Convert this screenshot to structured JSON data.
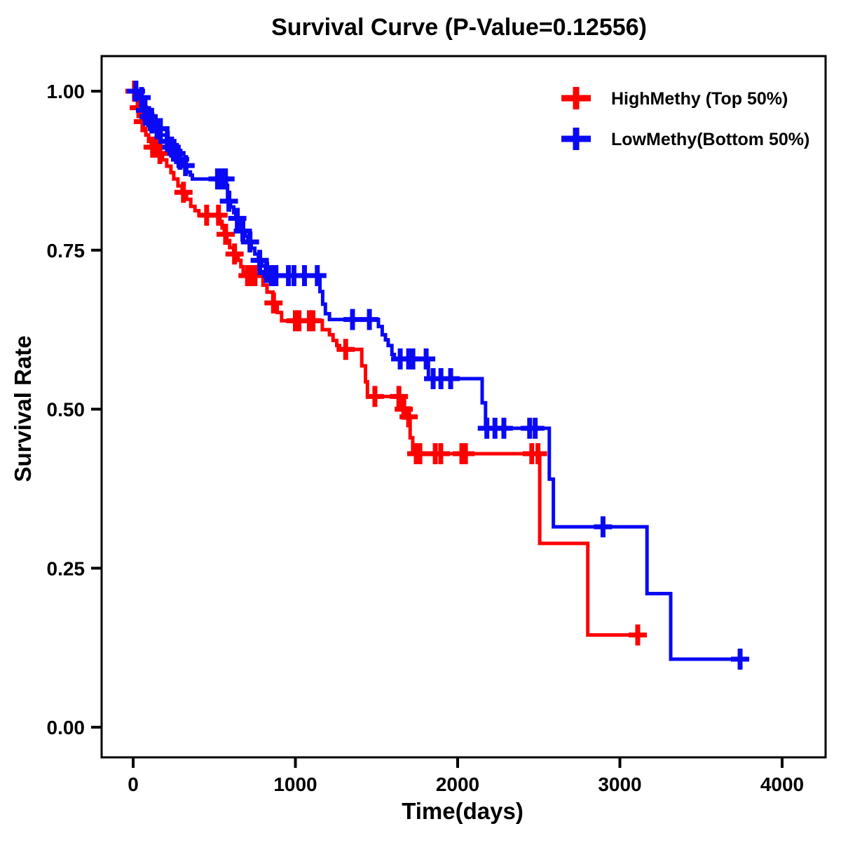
{
  "title": "Survival Curve (P-Value=0.12556)",
  "p_value": "0.12556",
  "chart_data": {
    "type": "line",
    "subtype": "kaplan-meier-step",
    "title": "Survival Curve (P-Value=0.12556)",
    "xlabel": "Time(days)",
    "ylabel": "Survival Rate",
    "xlim": [
      0,
      4000
    ],
    "ylim": [
      0.0,
      1.0
    ],
    "x_ticks": [
      0,
      1000,
      2000,
      3000,
      4000
    ],
    "y_ticks": [
      "0.00",
      "0.25",
      "0.50",
      "0.75",
      "1.00"
    ],
    "y_tick_values": [
      0,
      0.25,
      0.5,
      0.75,
      1.0
    ],
    "grid": false,
    "legend_position": "top-right",
    "series": [
      {
        "name": "HighMethy (Top 50%)",
        "color": "#ff0000",
        "end_day": 3135,
        "steps": [
          [
            0,
            1.0
          ],
          [
            13,
            0.987
          ],
          [
            26,
            0.974
          ],
          [
            39,
            0.963
          ],
          [
            52,
            0.952
          ],
          [
            65,
            0.941
          ],
          [
            78,
            0.931
          ],
          [
            95,
            0.921
          ],
          [
            112,
            0.912
          ],
          [
            155,
            0.902
          ],
          [
            181,
            0.892
          ],
          [
            207,
            0.882
          ],
          [
            233,
            0.872
          ],
          [
            250,
            0.862
          ],
          [
            276,
            0.851
          ],
          [
            302,
            0.841
          ],
          [
            329,
            0.83
          ],
          [
            355,
            0.819
          ],
          [
            381,
            0.812
          ],
          [
            405,
            0.805
          ],
          [
            535,
            0.795
          ],
          [
            548,
            0.785
          ],
          [
            562,
            0.775
          ],
          [
            578,
            0.765
          ],
          [
            595,
            0.754
          ],
          [
            620,
            0.744
          ],
          [
            647,
            0.734
          ],
          [
            664,
            0.724
          ],
          [
            678,
            0.714
          ],
          [
            692,
            0.71
          ],
          [
            800,
            0.695
          ],
          [
            825,
            0.684
          ],
          [
            862,
            0.667
          ],
          [
            888,
            0.652
          ],
          [
            915,
            0.639
          ],
          [
            1166,
            0.625
          ],
          [
            1210,
            0.617
          ],
          [
            1232,
            0.608
          ],
          [
            1255,
            0.6
          ],
          [
            1272,
            0.594
          ],
          [
            1409,
            0.568
          ],
          [
            1432,
            0.543
          ],
          [
            1444,
            0.52
          ],
          [
            1652,
            0.5
          ],
          [
            1677,
            0.488
          ],
          [
            1707,
            0.455
          ],
          [
            1723,
            0.43
          ],
          [
            2506,
            0.289
          ],
          [
            2802,
            0.145
          ]
        ],
        "censor_days": [
          8,
          35,
          60,
          120,
          141,
          165,
          310,
          453,
          526,
          570,
          625,
          705,
          726,
          751,
          865,
          1000,
          1022,
          1086,
          1108,
          1310,
          1490,
          1638,
          1668,
          1698,
          1745,
          1767,
          1862,
          1896,
          2026,
          2048,
          2457,
          2495,
          3110
        ]
      },
      {
        "name": "LowMethy(Bottom 50%)",
        "color": "#0909f5",
        "end_day": 3770,
        "steps": [
          [
            0,
            1.0
          ],
          [
            43,
            0.99
          ],
          [
            56,
            0.98
          ],
          [
            69,
            0.97
          ],
          [
            82,
            0.96
          ],
          [
            108,
            0.95
          ],
          [
            134,
            0.941
          ],
          [
            170,
            0.931
          ],
          [
            205,
            0.921
          ],
          [
            230,
            0.912
          ],
          [
            256,
            0.902
          ],
          [
            280,
            0.893
          ],
          [
            305,
            0.883
          ],
          [
            330,
            0.873
          ],
          [
            353,
            0.868
          ],
          [
            365,
            0.862
          ],
          [
            575,
            0.852
          ],
          [
            582,
            0.827
          ],
          [
            600,
            0.818
          ],
          [
            620,
            0.809
          ],
          [
            633,
            0.8
          ],
          [
            655,
            0.79
          ],
          [
            668,
            0.78
          ],
          [
            690,
            0.772
          ],
          [
            707,
            0.763
          ],
          [
            728,
            0.753
          ],
          [
            750,
            0.744
          ],
          [
            772,
            0.734
          ],
          [
            793,
            0.725
          ],
          [
            815,
            0.715
          ],
          [
            850,
            0.71
          ],
          [
            1151,
            0.685
          ],
          [
            1168,
            0.665
          ],
          [
            1185,
            0.65
          ],
          [
            1210,
            0.641
          ],
          [
            1512,
            0.63
          ],
          [
            1535,
            0.617
          ],
          [
            1555,
            0.609
          ],
          [
            1572,
            0.6
          ],
          [
            1595,
            0.586
          ],
          [
            1610,
            0.579
          ],
          [
            1820,
            0.548
          ],
          [
            2151,
            0.51
          ],
          [
            2172,
            0.47
          ],
          [
            2565,
            0.39
          ],
          [
            2590,
            0.315
          ],
          [
            3167,
            0.21
          ],
          [
            3313,
            0.107
          ]
        ],
        "censor_days": [
          17,
          52,
          73,
          95,
          116,
          147,
          168,
          211,
          237,
          267,
          289,
          323,
          520,
          545,
          569,
          590,
          642,
          676,
          720,
          780,
          823,
          852,
          880,
          957,
          991,
          1056,
          1135,
          1352,
          1456,
          1646,
          1698,
          1724,
          1806,
          1849,
          1897,
          1957,
          2180,
          2230,
          2285,
          2444,
          2478,
          2896,
          3741
        ]
      }
    ]
  },
  "legend": {
    "entries": [
      {
        "label": "HighMethy (Top 50%)",
        "marker": "plus-icon",
        "color": "#ff0000"
      },
      {
        "label": "LowMethy(Bottom 50%)",
        "marker": "plus-icon",
        "color": "#0909f5"
      }
    ]
  }
}
